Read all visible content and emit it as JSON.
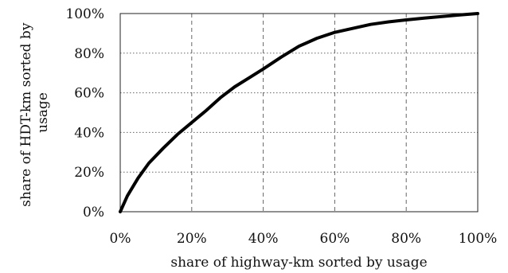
{
  "chart_data": {
    "type": "line",
    "xlabel": "share of highway-km sorted by usage",
    "ylabel_lines": [
      "share of HDT-km sorted by",
      "usage"
    ],
    "xlim": [
      0,
      100
    ],
    "ylim": [
      0,
      100
    ],
    "x_ticks": [
      0,
      20,
      40,
      60,
      80,
      100
    ],
    "y_ticks": [
      0,
      20,
      40,
      60,
      80,
      100
    ],
    "x_tick_labels": [
      "0%",
      "20%",
      "40%",
      "60%",
      "80%",
      "100%"
    ],
    "y_tick_labels": [
      "0%",
      "20%",
      "40%",
      "60%",
      "80%",
      "100%"
    ],
    "grid": {
      "x": "dashed",
      "y": "dotted"
    },
    "legend": "none",
    "line_color": "#000000",
    "series": [
      {
        "x": [
          0,
          2,
          5,
          8,
          12,
          16,
          20,
          24,
          28,
          32,
          36,
          40,
          45,
          50,
          55,
          60,
          65,
          70,
          75,
          80,
          85,
          90,
          95,
          100
        ],
        "y": [
          0,
          8,
          17,
          24.5,
          32,
          39,
          45,
          51,
          57.5,
          63,
          67.5,
          72,
          78,
          83.5,
          87.5,
          90.5,
          92.5,
          94.5,
          95.8,
          96.8,
          97.7,
          98.5,
          99.3,
          100
        ]
      }
    ]
  }
}
